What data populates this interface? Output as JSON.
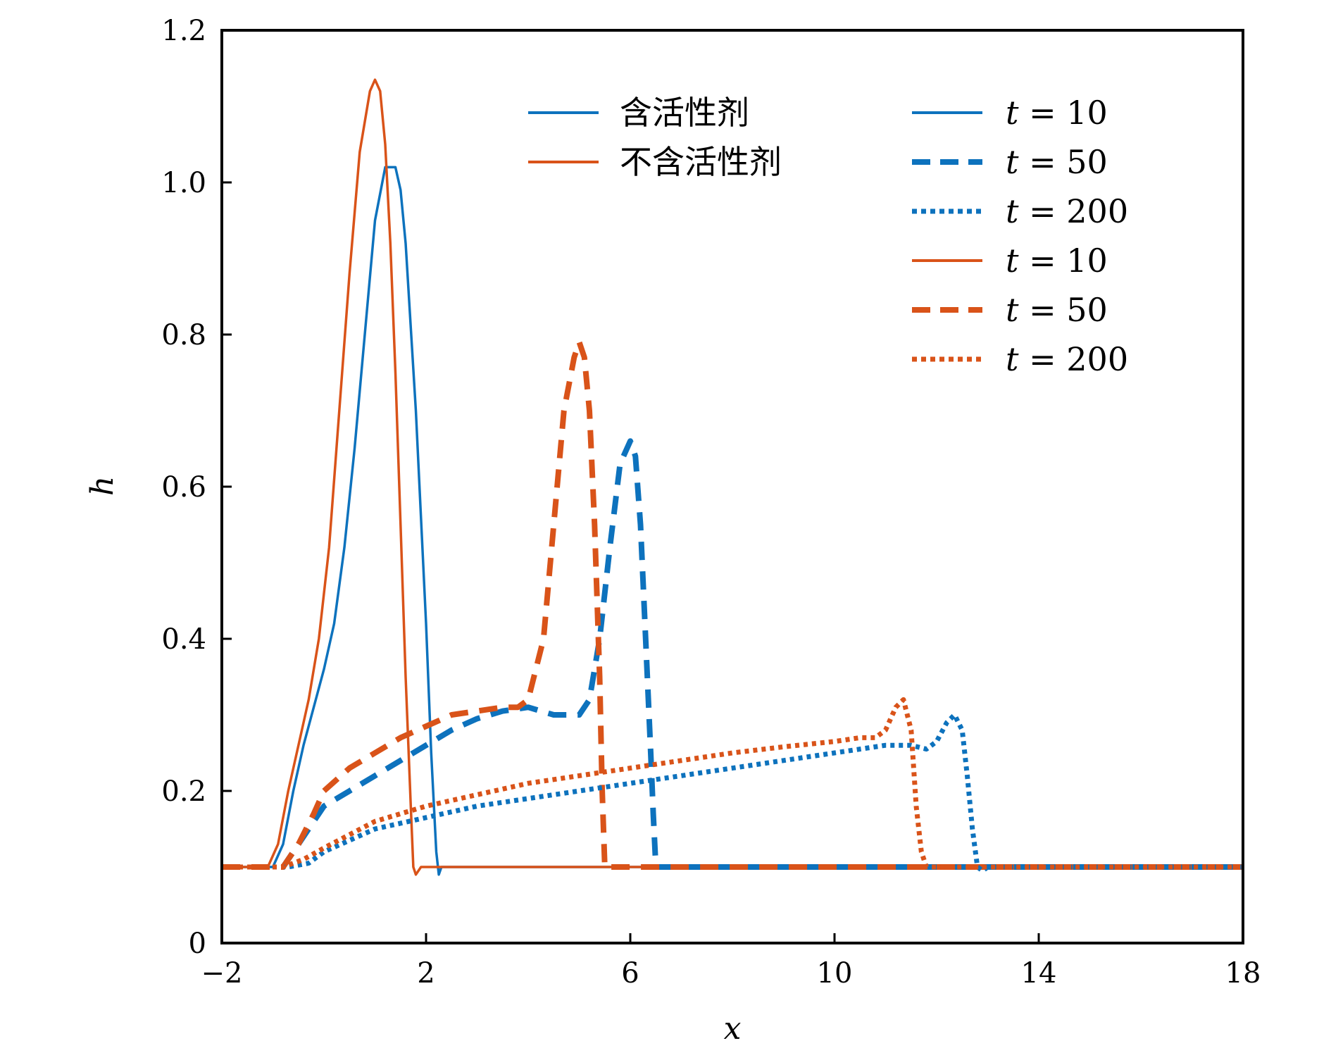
{
  "chart_data": {
    "type": "line",
    "xlabel": "x",
    "ylabel": "h",
    "xlim": [
      -2,
      18
    ],
    "ylim": [
      0,
      1.2
    ],
    "xticks": [
      -2,
      2,
      6,
      10,
      14,
      18
    ],
    "xtick_labels": [
      "−2",
      "2",
      "6",
      "10",
      "14",
      "18"
    ],
    "yticks": [
      0,
      0.2,
      0.4,
      0.6,
      0.8,
      1.0,
      1.2
    ],
    "ytick_labels": [
      "0",
      "0.2",
      "0.4",
      "0.6",
      "0.8",
      "1.0",
      "1.2"
    ],
    "colors": {
      "blue": "#0d72bd",
      "orange": "#d95319"
    },
    "legend_groups": [
      {
        "label": "含活性剂",
        "color": "#0d72bd"
      },
      {
        "label": "不含活性剂",
        "color": "#d95319"
      }
    ],
    "legend_times": [
      {
        "t": "t",
        "eq": " = 10",
        "color": "#0d72bd",
        "style": "solid"
      },
      {
        "t": "t",
        "eq": " = 50",
        "color": "#0d72bd",
        "style": "dashed"
      },
      {
        "t": "t",
        "eq": " = 200",
        "color": "#0d72bd",
        "style": "dotted"
      },
      {
        "t": "t",
        "eq": " = 10",
        "color": "#d95319",
        "style": "solid"
      },
      {
        "t": "t",
        "eq": " = 50",
        "color": "#d95319",
        "style": "dashed"
      },
      {
        "t": "t",
        "eq": " = 200",
        "color": "#d95319",
        "style": "dotted"
      }
    ],
    "legend_placement": "top-right",
    "grid": false,
    "series": [
      {
        "color": "#0d72bd",
        "style": "solid",
        "group": "含活性剂",
        "t": 10,
        "x": [
          -2,
          -1,
          -0.8,
          -0.6,
          -0.4,
          -0.2,
          0,
          0.2,
          0.4,
          0.6,
          0.8,
          1.0,
          1.2,
          1.4,
          1.5,
          1.6,
          1.8,
          2.0,
          2.1,
          2.2,
          2.25,
          2.3,
          2.5,
          5,
          10,
          18
        ],
        "y": [
          0.1,
          0.1,
          0.13,
          0.2,
          0.26,
          0.31,
          0.36,
          0.42,
          0.52,
          0.65,
          0.8,
          0.95,
          1.02,
          1.02,
          0.99,
          0.92,
          0.7,
          0.42,
          0.25,
          0.12,
          0.09,
          0.1,
          0.1,
          0.1,
          0.1,
          0.1
        ]
      },
      {
        "color": "#d95319",
        "style": "solid",
        "group": "不含活性剂",
        "t": 10,
        "x": [
          -2,
          -1.1,
          -0.9,
          -0.7,
          -0.5,
          -0.3,
          -0.1,
          0.1,
          0.3,
          0.5,
          0.7,
          0.9,
          1.0,
          1.1,
          1.2,
          1.3,
          1.4,
          1.5,
          1.6,
          1.7,
          1.75,
          1.8,
          1.9,
          2.5,
          18
        ],
        "y": [
          0.1,
          0.1,
          0.13,
          0.2,
          0.26,
          0.32,
          0.4,
          0.52,
          0.7,
          0.88,
          1.04,
          1.12,
          1.135,
          1.12,
          1.05,
          0.92,
          0.75,
          0.55,
          0.35,
          0.18,
          0.1,
          0.09,
          0.1,
          0.1,
          0.1
        ]
      },
      {
        "color": "#0d72bd",
        "style": "dashed",
        "group": "含活性剂",
        "t": 50,
        "x": [
          -2,
          -0.8,
          -0.5,
          -0.2,
          0,
          0.5,
          1,
          1.5,
          2,
          2.5,
          3,
          3.5,
          4,
          4.5,
          5,
          5.2,
          5.4,
          5.6,
          5.8,
          6.0,
          6.1,
          6.2,
          6.3,
          6.4,
          6.45,
          6.5,
          6.7,
          10,
          18
        ],
        "y": [
          0.1,
          0.1,
          0.13,
          0.16,
          0.18,
          0.2,
          0.22,
          0.24,
          0.26,
          0.28,
          0.295,
          0.305,
          0.31,
          0.3,
          0.3,
          0.32,
          0.4,
          0.52,
          0.63,
          0.66,
          0.64,
          0.55,
          0.4,
          0.25,
          0.17,
          0.1,
          0.1,
          0.1,
          0.1
        ]
      },
      {
        "color": "#d95319",
        "style": "dashed",
        "group": "不含活性剂",
        "t": 50,
        "x": [
          -2,
          -0.8,
          -0.5,
          -0.2,
          0,
          0.5,
          1,
          1.5,
          2,
          2.5,
          3,
          3.5,
          3.8,
          4.0,
          4.3,
          4.5,
          4.7,
          4.9,
          5.0,
          5.1,
          5.2,
          5.3,
          5.4,
          5.45,
          5.5,
          6,
          18
        ],
        "y": [
          0.1,
          0.1,
          0.13,
          0.17,
          0.2,
          0.23,
          0.25,
          0.27,
          0.285,
          0.3,
          0.305,
          0.31,
          0.31,
          0.32,
          0.4,
          0.55,
          0.7,
          0.77,
          0.79,
          0.77,
          0.7,
          0.55,
          0.35,
          0.2,
          0.1,
          0.1,
          0.1
        ]
      },
      {
        "color": "#0d72bd",
        "style": "dotted",
        "group": "含活性剂",
        "t": 200,
        "x": [
          -2,
          -0.7,
          -0.3,
          0,
          1,
          2,
          3,
          4,
          5,
          6,
          7,
          8,
          9,
          10,
          11,
          11.5,
          11.8,
          12.0,
          12.2,
          12.35,
          12.5,
          12.6,
          12.7,
          12.8,
          12.9,
          13,
          18
        ],
        "y": [
          0.1,
          0.1,
          0.105,
          0.12,
          0.15,
          0.165,
          0.18,
          0.19,
          0.2,
          0.21,
          0.22,
          0.23,
          0.24,
          0.25,
          0.26,
          0.26,
          0.255,
          0.265,
          0.29,
          0.3,
          0.28,
          0.22,
          0.15,
          0.1,
          0.095,
          0.1,
          0.1
        ]
      },
      {
        "color": "#d95319",
        "style": "dotted",
        "group": "不含活性剂",
        "t": 200,
        "x": [
          -2,
          -0.8,
          -0.4,
          0,
          1,
          2,
          3,
          4,
          5,
          6,
          7,
          8,
          9,
          10,
          10.5,
          10.8,
          11.0,
          11.2,
          11.35,
          11.5,
          11.6,
          11.7,
          11.8,
          11.9,
          12.2,
          18
        ],
        "y": [
          0.1,
          0.1,
          0.11,
          0.125,
          0.16,
          0.18,
          0.195,
          0.21,
          0.22,
          0.23,
          0.24,
          0.25,
          0.258,
          0.265,
          0.27,
          0.27,
          0.28,
          0.31,
          0.32,
          0.28,
          0.18,
          0.12,
          0.1,
          0.1,
          0.1,
          0.1
        ]
      }
    ]
  }
}
